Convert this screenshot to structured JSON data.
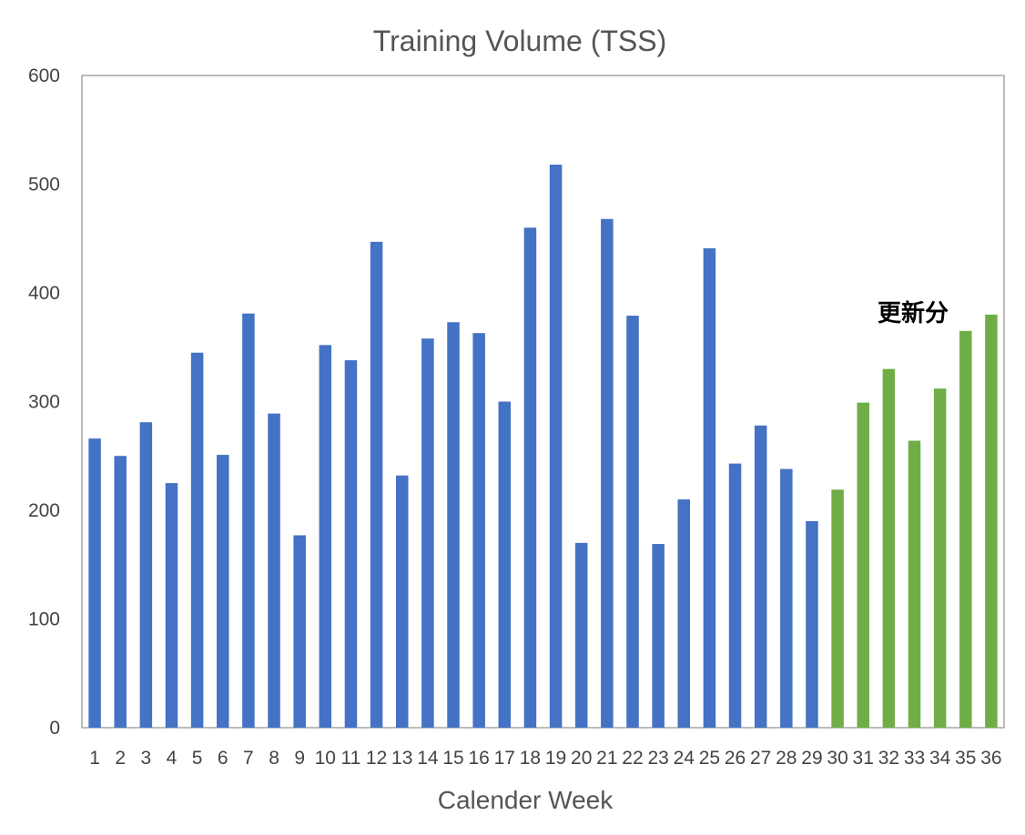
{
  "chart_data": {
    "type": "bar",
    "title": "Training Volume (TSS)",
    "xlabel": "Calender Week",
    "ylabel": "",
    "ylim": [
      0,
      600
    ],
    "yticks": [
      0,
      100,
      200,
      300,
      400,
      500,
      600
    ],
    "categories": [
      "1",
      "2",
      "3",
      "4",
      "5",
      "6",
      "7",
      "8",
      "9",
      "10",
      "11",
      "12",
      "13",
      "14",
      "15",
      "16",
      "17",
      "18",
      "19",
      "20",
      "21",
      "22",
      "23",
      "24",
      "25",
      "26",
      "27",
      "28",
      "29",
      "30",
      "31",
      "32",
      "33",
      "34",
      "35",
      "36"
    ],
    "values": [
      266,
      250,
      281,
      225,
      345,
      251,
      381,
      289,
      177,
      352,
      338,
      447,
      232,
      358,
      373,
      363,
      300,
      460,
      518,
      170,
      468,
      379,
      169,
      210,
      441,
      243,
      278,
      238,
      190,
      219,
      299,
      330,
      264,
      312,
      365,
      380
    ],
    "colors": {
      "default": "#4472C4",
      "highlight": "#70AD47",
      "plot_border": "#a6a6a6"
    },
    "highlight_from_category": "30",
    "annotations": [
      {
        "text": "更新分"
      }
    ],
    "grid": false,
    "legend": "none"
  }
}
